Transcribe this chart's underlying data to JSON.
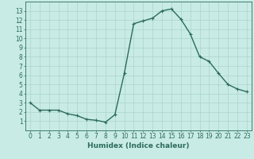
{
  "x": [
    0,
    1,
    2,
    3,
    4,
    5,
    6,
    7,
    8,
    9,
    10,
    11,
    12,
    13,
    14,
    15,
    16,
    17,
    18,
    19,
    20,
    21,
    22,
    23
  ],
  "y": [
    3.0,
    2.2,
    2.2,
    2.2,
    1.8,
    1.6,
    1.2,
    1.1,
    0.9,
    1.7,
    6.2,
    11.6,
    11.9,
    12.2,
    13.0,
    13.2,
    12.1,
    10.5,
    8.0,
    7.5,
    6.2,
    5.0,
    4.5,
    4.2
  ],
  "line_color": "#2d6b5e",
  "marker": "+",
  "bg_color": "#c8ebe5",
  "grid_color": "#aad5cc",
  "xlabel": "Humidex (Indice chaleur)",
  "ylim": [
    0,
    14
  ],
  "xlim": [
    -0.5,
    23.5
  ],
  "yticks": [
    1,
    2,
    3,
    4,
    5,
    6,
    7,
    8,
    9,
    10,
    11,
    12,
    13
  ],
  "xticks": [
    0,
    1,
    2,
    3,
    4,
    5,
    6,
    7,
    8,
    9,
    10,
    11,
    12,
    13,
    14,
    15,
    16,
    17,
    18,
    19,
    20,
    21,
    22,
    23
  ],
  "tick_fontsize": 5.5,
  "label_fontsize": 6.5,
  "linewidth": 1.0,
  "markersize": 3.5,
  "markeredgewidth": 0.8
}
